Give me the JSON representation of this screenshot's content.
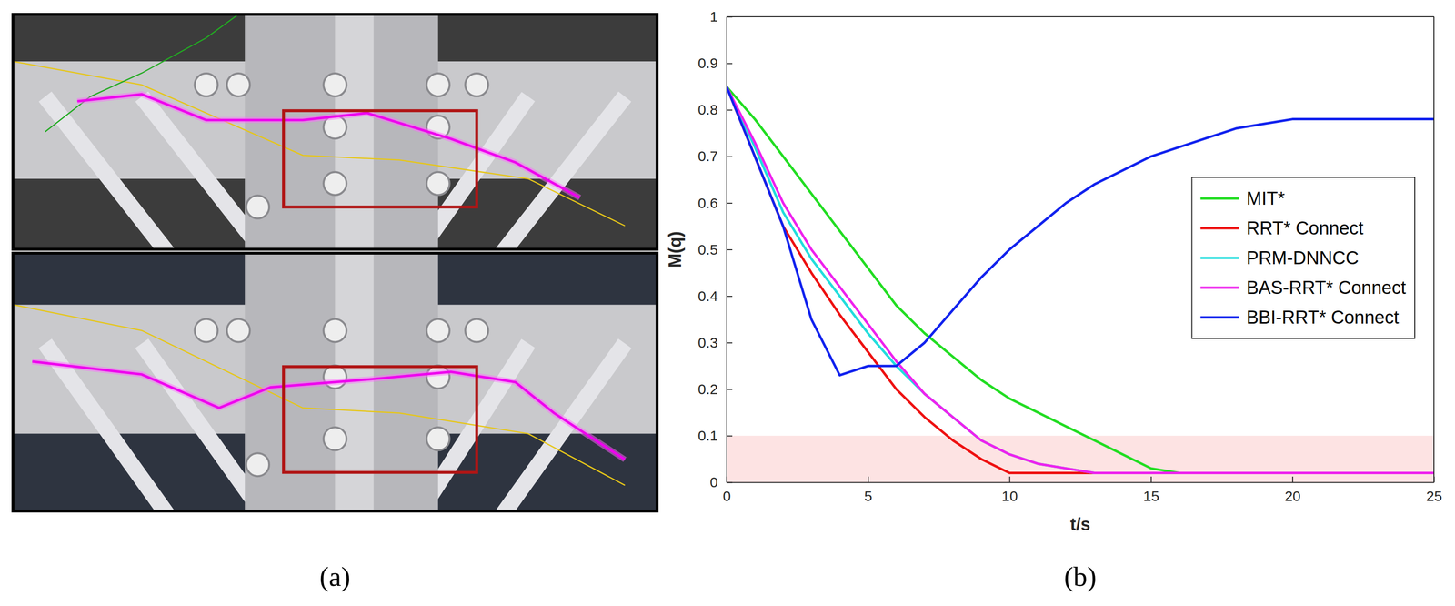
{
  "captions": [
    "(a)",
    "(b)"
  ],
  "chart_data": {
    "type": "line",
    "x_label": "t/s",
    "y_label": "M(q)",
    "x": [
      0,
      1,
      2,
      3,
      4,
      5,
      6,
      7,
      8,
      9,
      10,
      11,
      12,
      13,
      14,
      15,
      16,
      17,
      18,
      19,
      20,
      21,
      22,
      23,
      24,
      25
    ],
    "xlim": [
      0,
      25
    ],
    "xticks": [
      0,
      5,
      10,
      15,
      20,
      25
    ],
    "ylim": [
      0,
      1
    ],
    "yticks": [
      0,
      0.1,
      0.2,
      0.3,
      0.4,
      0.5,
      0.6,
      0.7,
      0.8,
      0.9,
      1
    ],
    "grid": false,
    "legend": "right",
    "band": [
      0,
      0.1
    ],
    "series": [
      {
        "name": "MIT*",
        "color": "#22dd22",
        "values": [
          0.85,
          0.78,
          0.7,
          0.62,
          0.54,
          0.46,
          0.38,
          0.32,
          0.27,
          0.22,
          0.18,
          0.15,
          0.12,
          0.09,
          0.06,
          0.03,
          0.02,
          0.02,
          0.02,
          0.02,
          0.02,
          0.02,
          0.02,
          0.02,
          0.02,
          0.02
        ]
      },
      {
        "name": "RRT* Connect",
        "color": "#ee1111",
        "values": [
          0.85,
          0.7,
          0.55,
          0.45,
          0.36,
          0.28,
          0.2,
          0.14,
          0.09,
          0.05,
          0.02,
          0.02,
          0.02,
          0.02,
          0.02,
          0.02,
          0.02,
          0.02,
          0.02,
          0.02,
          0.02,
          0.02,
          0.02,
          0.02,
          0.02,
          0.02
        ]
      },
      {
        "name": "PRM-DNNCC",
        "color": "#22dddd",
        "values": [
          0.85,
          0.72,
          0.58,
          0.48,
          0.4,
          0.32,
          0.25,
          0.19,
          0.14,
          0.09,
          0.06,
          0.04,
          0.03,
          0.02,
          0.02,
          0.02,
          0.02,
          0.02,
          0.02,
          0.02,
          0.02,
          0.02,
          0.02,
          0.02,
          0.02,
          0.02
        ]
      },
      {
        "name": "BAS-RRT* Connect",
        "color": "#ee22ee",
        "values": [
          0.85,
          0.73,
          0.6,
          0.5,
          0.42,
          0.34,
          0.26,
          0.19,
          0.14,
          0.09,
          0.06,
          0.04,
          0.03,
          0.02,
          0.02,
          0.02,
          0.02,
          0.02,
          0.02,
          0.02,
          0.02,
          0.02,
          0.02,
          0.02,
          0.02,
          0.02
        ]
      },
      {
        "name": "BBI-RRT* Connect",
        "color": "#1122ee",
        "values": [
          0.85,
          0.7,
          0.55,
          0.35,
          0.23,
          0.25,
          0.25,
          0.3,
          0.37,
          0.44,
          0.5,
          0.55,
          0.6,
          0.64,
          0.67,
          0.7,
          0.72,
          0.74,
          0.76,
          0.77,
          0.78,
          0.78,
          0.78,
          0.78,
          0.78,
          0.78
        ]
      }
    ]
  }
}
